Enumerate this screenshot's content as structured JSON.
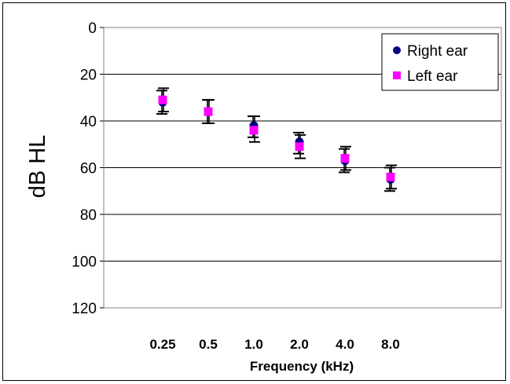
{
  "chart_data": {
    "type": "scatter",
    "title": "",
    "xlabel": "Frequency (kHz)",
    "ylabel": "dB HL",
    "categories": [
      "0.25",
      "0.5",
      "1.0",
      "2.0",
      "4.0",
      "8.0"
    ],
    "y_ticks": [
      "0",
      "20",
      "40",
      "60",
      "80",
      "100",
      "120"
    ],
    "ylim": [
      0,
      120
    ],
    "y_inverted": true,
    "grid": true,
    "legend_position": "top-right",
    "series": [
      {
        "name": "Right ear",
        "marker": "circle",
        "color": "#000080",
        "values": [
          32,
          36,
          42,
          49,
          57,
          65
        ],
        "error_low": [
          27,
          31,
          38,
          45,
          52,
          60
        ],
        "error_high": [
          37,
          41,
          47,
          54,
          62,
          70
        ]
      },
      {
        "name": "Left ear",
        "marker": "square",
        "color": "#ff00ff",
        "values": [
          31,
          36,
          44,
          51,
          56,
          64
        ],
        "error_low": [
          26,
          31,
          38,
          46,
          51,
          59
        ],
        "error_high": [
          36,
          41,
          49,
          56,
          61,
          69
        ]
      }
    ]
  }
}
